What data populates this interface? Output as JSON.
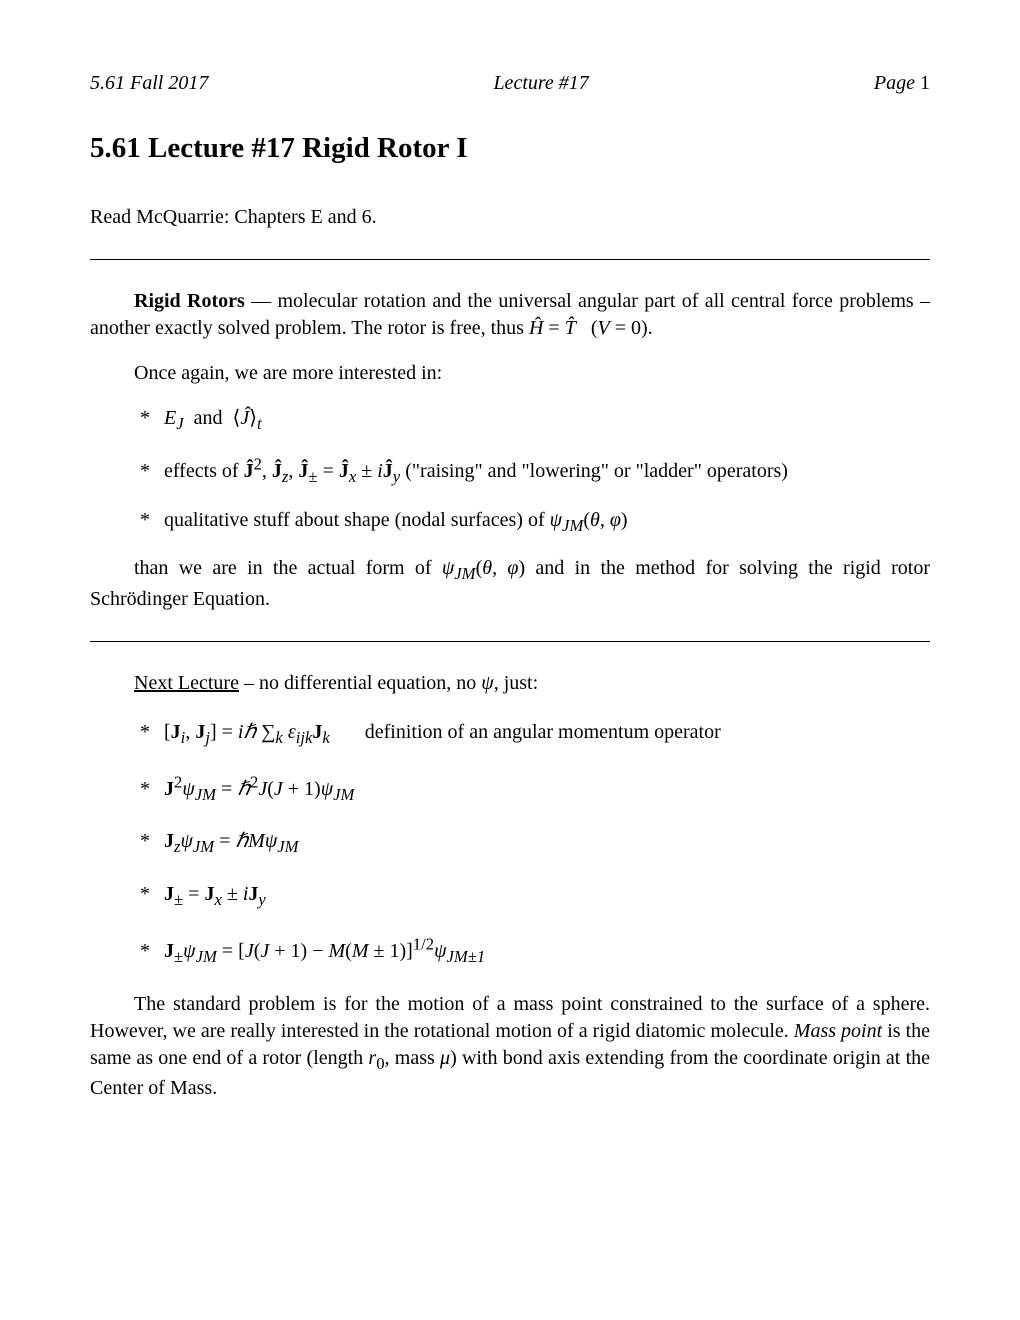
{
  "header": {
    "left": "5.61 Fall 2017",
    "center": "Lecture #17",
    "right_label": "Page",
    "right_num": "1"
  },
  "title": "5.61 Lecture #17 Rigid Rotor I",
  "reading": "Read McQuarrie: Chapters E and 6.",
  "para1_html": "<b>Rigid Rotors</b> — molecular rotation and the universal angular part of all central force problems – another exactly solved problem. The rotor is free, thus <span style='font-style:italic'>Ĥ</span> = <span style='font-style:italic'>T̂</span>&nbsp;&nbsp;&nbsp;(<i>V</i> = 0).",
  "para2": "Once again, we are more interested in:",
  "bullets1": [
    "<i>E<sub>J</sub></i>&nbsp; and &nbsp;⟨<span style='font-style:italic'>Ĵ</span>⟩<sub><i>t</i></sub>",
    "effects of <b>Ĵ</b><sup>2</sup>, <b>Ĵ</b><sub><i>z</i></sub>, <b>Ĵ</b><sub>±</sub> = <b>Ĵ</b><sub><i>x</i></sub> ± <i>i</i><b>Ĵ</b><sub><i>y</i></sub> (\"raising\" and \"lowering\" or \"ladder\" operators)",
    "qualitative stuff about shape (nodal surfaces) of <i>ψ<sub>JM</sub></i>(<i>θ</i>, <i>φ</i>)"
  ],
  "para3_html": "than we are in the actual form of <i>ψ<sub>JM</sub></i>(<i>θ</i>, <i>φ</i>) and in the method for solving the rigid rotor Schrödinger Equation.",
  "para4_html": "<span class='underline'>Next Lecture</span> – no differential equation, no <i>ψ</i>, just:",
  "bullets2": [
    "[<b>J</b><sub><i>i</i></sub>, <b>J</b><sub><i>j</i></sub>] = <i>iℏ</i> ∑<sub><i>k</i></sub> <i>ε<sub>ijk</sub></i><b>J</b><sub><i>k</i></sub>&nbsp;&nbsp;&nbsp;&nbsp;&nbsp;&nbsp;&nbsp;definition of an angular momentum operator",
    "<b>J</b><sup>2</sup><i>ψ<sub>JM</sub></i> = <i>ℏ</i><sup>2</sup><i>J</i>(<i>J</i> + 1)<i>ψ<sub>JM</sub></i>",
    "<b>J</b><sub><i>z</i></sub><i>ψ<sub>JM</sub></i> = <i>ℏM</i><i>ψ<sub>JM</sub></i>",
    "<b>J</b><sub>±</sub> = <b>J</b><sub><i>x</i></sub> ± <i>i</i><b>J</b><sub><i>y</i></sub>",
    "<b>J</b><sub>±</sub><i>ψ<sub>JM</sub></i> = [<i>J</i>(<i>J</i> + 1) − <i>M</i>(<i>M</i> ± 1)]<sup>1/2</sup><i>ψ<sub>JM±1</sub></i>"
  ],
  "para5_html": "The standard problem is for the motion of a mass point constrained to the surface of a sphere. However, we are really interested in the rotational motion of a rigid diatomic molecule. <i>Mass point</i> is the same as one end of a rotor (length <i>r</i><sub>0</sub>, mass <i>μ</i>) with bond axis extending from the coordinate origin at the Center of Mass."
}
